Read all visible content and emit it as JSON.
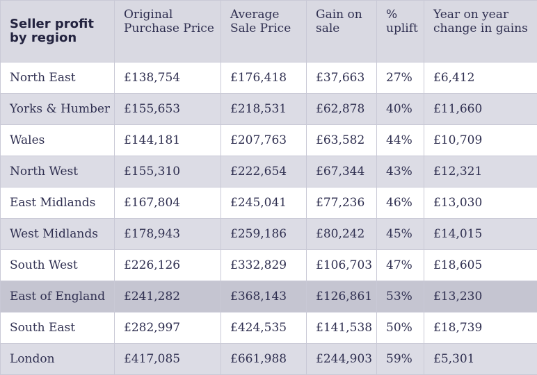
{
  "table": {
    "headers": [
      "Seller profit by region",
      "Original Purchase Price",
      "Average Sale Price",
      "Gain on sale",
      "% uplift",
      "Year on year change in  gains"
    ],
    "rows": [
      [
        "North East",
        "£138,754",
        "£176,418",
        "£37,663",
        "27%",
        "£6,412"
      ],
      [
        "Yorks & Humber",
        "£155,653",
        "£218,531",
        "£62,878",
        "40%",
        "£11,660"
      ],
      [
        "Wales",
        "£144,181",
        "£207,763",
        "£63,582",
        "44%",
        "£10,709"
      ],
      [
        "North West",
        "£155,310",
        "£222,654",
        "£67,344",
        "43%",
        "£12,321"
      ],
      [
        "East Midlands",
        "£167,804",
        "£245,041",
        "£77,236",
        "46%",
        "£13,030"
      ],
      [
        "West Midlands",
        "£178,943",
        "£259,186",
        "£80,242",
        "45%",
        "£14,015"
      ],
      [
        "South West",
        "£226,126",
        "£332,829",
        "£106,703",
        "47%",
        "£18,605"
      ],
      [
        "East of England",
        "£241,282",
        "£368,143",
        "£126,861",
        "53%",
        "£13,230"
      ],
      [
        "South East",
        "£282,997",
        "£424,535",
        "£141,538",
        "50%",
        "£18,739"
      ],
      [
        "London",
        "£417,085",
        "£661,988",
        "£244,903",
        "59%",
        "£5,301"
      ]
    ],
    "highlighted_row": "East of England",
    "colors": {
      "header_bg": "#d9d9e2",
      "stripe_bg": "#dcdce5",
      "highlight_bg": "#c5c5d1",
      "text": "#2f2f50"
    }
  }
}
